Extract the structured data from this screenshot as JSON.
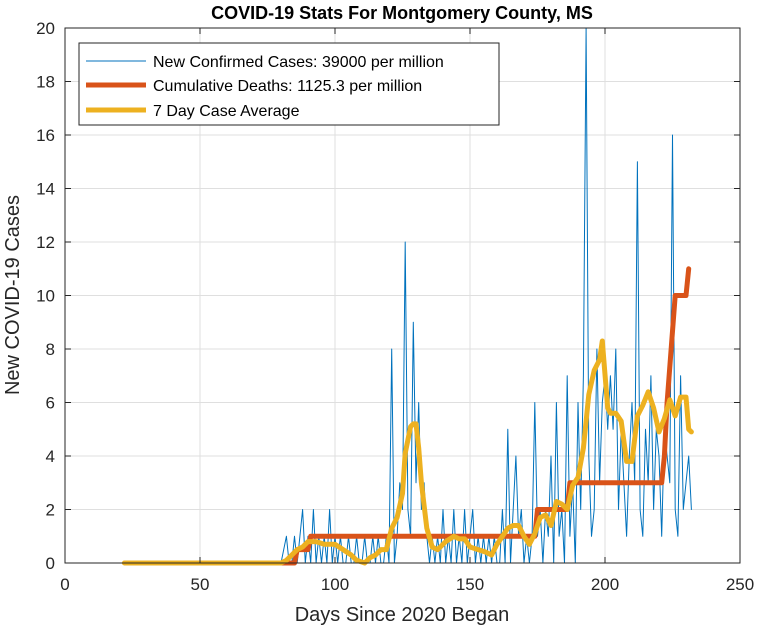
{
  "chart_data": {
    "type": "line",
    "title": "COVID-19 Stats For Montgomery County, MS",
    "xlabel": "Days Since 2020 Began",
    "ylabel": "New COVID-19 Cases",
    "xlim": [
      0,
      250
    ],
    "ylim": [
      0,
      20
    ],
    "xticks": [
      0,
      50,
      100,
      150,
      200,
      250
    ],
    "yticks": [
      0,
      2,
      4,
      6,
      8,
      10,
      12,
      14,
      16,
      18,
      20
    ],
    "grid": true,
    "legend_position": "top-left",
    "series": [
      {
        "name": "New Confirmed Cases: 39000 per million",
        "color": "#0072BD",
        "width": "thin",
        "points": [
          [
            22,
            0
          ],
          [
            80,
            0
          ],
          [
            82,
            1
          ],
          [
            83,
            0
          ],
          [
            84,
            0
          ],
          [
            85,
            1
          ],
          [
            86,
            0
          ],
          [
            87,
            1
          ],
          [
            88,
            2
          ],
          [
            89,
            0
          ],
          [
            90,
            1
          ],
          [
            91,
            0
          ],
          [
            92,
            2
          ],
          [
            93,
            0
          ],
          [
            94,
            1
          ],
          [
            95,
            0
          ],
          [
            96,
            1
          ],
          [
            97,
            0
          ],
          [
            98,
            2
          ],
          [
            99,
            0
          ],
          [
            100,
            1
          ],
          [
            101,
            0
          ],
          [
            102,
            1
          ],
          [
            103,
            0
          ],
          [
            104,
            0
          ],
          [
            105,
            1
          ],
          [
            106,
            0
          ],
          [
            107,
            0
          ],
          [
            108,
            1
          ],
          [
            109,
            0
          ],
          [
            110,
            0
          ],
          [
            111,
            1
          ],
          [
            112,
            0
          ],
          [
            113,
            0
          ],
          [
            114,
            1
          ],
          [
            115,
            0
          ],
          [
            116,
            1
          ],
          [
            117,
            0
          ],
          [
            118,
            0
          ],
          [
            119,
            1
          ],
          [
            120,
            0
          ],
          [
            121,
            8
          ],
          [
            122,
            0
          ],
          [
            123,
            1
          ],
          [
            124,
            3
          ],
          [
            125,
            2
          ],
          [
            126,
            12
          ],
          [
            127,
            2
          ],
          [
            128,
            1
          ],
          [
            129,
            9
          ],
          [
            130,
            3
          ],
          [
            131,
            6
          ],
          [
            132,
            2
          ],
          [
            133,
            3
          ],
          [
            134,
            1
          ],
          [
            135,
            0
          ],
          [
            136,
            1
          ],
          [
            137,
            0
          ],
          [
            138,
            1
          ],
          [
            139,
            0
          ],
          [
            140,
            2
          ],
          [
            141,
            0
          ],
          [
            142,
            1
          ],
          [
            143,
            0
          ],
          [
            144,
            2
          ],
          [
            145,
            0
          ],
          [
            146,
            1
          ],
          [
            147,
            0
          ],
          [
            148,
            2
          ],
          [
            149,
            0
          ],
          [
            150,
            1
          ],
          [
            151,
            2
          ],
          [
            152,
            0
          ],
          [
            153,
            1
          ],
          [
            154,
            0
          ],
          [
            155,
            1
          ],
          [
            156,
            0
          ],
          [
            157,
            1
          ],
          [
            158,
            0
          ],
          [
            159,
            1
          ],
          [
            160,
            0
          ],
          [
            161,
            0
          ],
          [
            162,
            2
          ],
          [
            163,
            0
          ],
          [
            164,
            5
          ],
          [
            165,
            0
          ],
          [
            166,
            2
          ],
          [
            167,
            4
          ],
          [
            168,
            1
          ],
          [
            169,
            2
          ],
          [
            170,
            0
          ],
          [
            171,
            1
          ],
          [
            172,
            0
          ],
          [
            173,
            1
          ],
          [
            174,
            6
          ],
          [
            175,
            1
          ],
          [
            176,
            2
          ],
          [
            177,
            0
          ],
          [
            178,
            2
          ],
          [
            179,
            1
          ],
          [
            180,
            4
          ],
          [
            181,
            0
          ],
          [
            182,
            6
          ],
          [
            183,
            1
          ],
          [
            184,
            2
          ],
          [
            185,
            0
          ],
          [
            186,
            7
          ],
          [
            187,
            1
          ],
          [
            188,
            3
          ],
          [
            189,
            0
          ],
          [
            190,
            6
          ],
          [
            191,
            2
          ],
          [
            192,
            7
          ],
          [
            193,
            20
          ],
          [
            194,
            4
          ],
          [
            195,
            1
          ],
          [
            196,
            2
          ],
          [
            197,
            8
          ],
          [
            198,
            3
          ],
          [
            199,
            6
          ],
          [
            200,
            7
          ],
          [
            201,
            5
          ],
          [
            202,
            7
          ],
          [
            203,
            5
          ],
          [
            204,
            8
          ],
          [
            205,
            2
          ],
          [
            206,
            5
          ],
          [
            207,
            3
          ],
          [
            208,
            1
          ],
          [
            209,
            4
          ],
          [
            210,
            6
          ],
          [
            211,
            3
          ],
          [
            212,
            15
          ],
          [
            213,
            2
          ],
          [
            214,
            1
          ],
          [
            215,
            5
          ],
          [
            216,
            3
          ],
          [
            217,
            7
          ],
          [
            218,
            2
          ],
          [
            219,
            5
          ],
          [
            220,
            4
          ],
          [
            221,
            1
          ],
          [
            222,
            5
          ],
          [
            223,
            4
          ],
          [
            224,
            3
          ],
          [
            225,
            16
          ],
          [
            226,
            2
          ],
          [
            227,
            1
          ],
          [
            228,
            7
          ],
          [
            229,
            2
          ],
          [
            230,
            3
          ],
          [
            231,
            4
          ],
          [
            232,
            2
          ]
        ]
      },
      {
        "name": "Cumulative Deaths: 1125.3 per million",
        "color": "#D95319",
        "width": "thick",
        "points": [
          [
            80,
            0
          ],
          [
            85,
            0
          ],
          [
            86,
            0.5
          ],
          [
            90,
            0.5
          ],
          [
            91,
            1
          ],
          [
            174,
            1
          ],
          [
            175,
            2
          ],
          [
            186,
            2
          ],
          [
            187,
            3
          ],
          [
            221,
            3
          ],
          [
            222,
            4
          ],
          [
            223,
            6
          ],
          [
            226,
            10
          ],
          [
            230,
            10
          ],
          [
            231,
            11
          ]
        ]
      },
      {
        "name": "7 Day Case Average",
        "color": "#EDB120",
        "width": "thick",
        "points": [
          [
            22,
            0
          ],
          [
            80,
            0
          ],
          [
            82,
            0.1
          ],
          [
            84,
            0.3
          ],
          [
            86,
            0.5
          ],
          [
            88,
            0.6
          ],
          [
            90,
            0.8
          ],
          [
            93,
            0.8
          ],
          [
            96,
            0.7
          ],
          [
            100,
            0.7
          ],
          [
            103,
            0.5
          ],
          [
            106,
            0.3
          ],
          [
            108,
            0.1
          ],
          [
            111,
            0
          ],
          [
            113,
            0.2
          ],
          [
            115,
            0.3
          ],
          [
            117,
            0.5
          ],
          [
            119,
            0.5
          ],
          [
            121,
            1.3
          ],
          [
            123,
            1.7
          ],
          [
            125,
            2.6
          ],
          [
            126,
            4.1
          ],
          [
            128,
            5.1
          ],
          [
            129,
            5.2
          ],
          [
            130,
            5.2
          ],
          [
            131,
            4.3
          ],
          [
            132,
            3.0
          ],
          [
            134,
            1.3
          ],
          [
            136,
            0.6
          ],
          [
            138,
            0.5
          ],
          [
            141,
            0.8
          ],
          [
            144,
            1.0
          ],
          [
            146,
            0.9
          ],
          [
            148,
            0.9
          ],
          [
            150,
            0.6
          ],
          [
            153,
            0.5
          ],
          [
            156,
            0.4
          ],
          [
            158,
            0.3
          ],
          [
            160,
            0.7
          ],
          [
            162,
            1.0
          ],
          [
            164,
            1.3
          ],
          [
            166,
            1.4
          ],
          [
            168,
            1.4
          ],
          [
            170,
            1.0
          ],
          [
            172,
            0.7
          ],
          [
            174,
            1.1
          ],
          [
            176,
            1.7
          ],
          [
            178,
            1.8
          ],
          [
            180,
            1.4
          ],
          [
            182,
            2.3
          ],
          [
            184,
            2.2
          ],
          [
            186,
            2.0
          ],
          [
            188,
            2.9
          ],
          [
            190,
            3.2
          ],
          [
            192,
            4.3
          ],
          [
            194,
            6.3
          ],
          [
            196,
            7.2
          ],
          [
            198,
            7.6
          ],
          [
            199,
            8.3
          ],
          [
            201,
            5.8
          ],
          [
            202,
            5.6
          ],
          [
            204,
            5.6
          ],
          [
            206,
            5.3
          ],
          [
            208,
            3.8
          ],
          [
            210,
            3.8
          ],
          [
            212,
            5.5
          ],
          [
            214,
            5.9
          ],
          [
            216,
            6.4
          ],
          [
            218,
            5.8
          ],
          [
            220,
            4.9
          ],
          [
            222,
            5.4
          ],
          [
            224,
            6.1
          ],
          [
            226,
            5.5
          ],
          [
            228,
            6.2
          ],
          [
            230,
            6.2
          ],
          [
            231,
            5.0
          ],
          [
            232,
            4.9
          ]
        ]
      }
    ]
  }
}
